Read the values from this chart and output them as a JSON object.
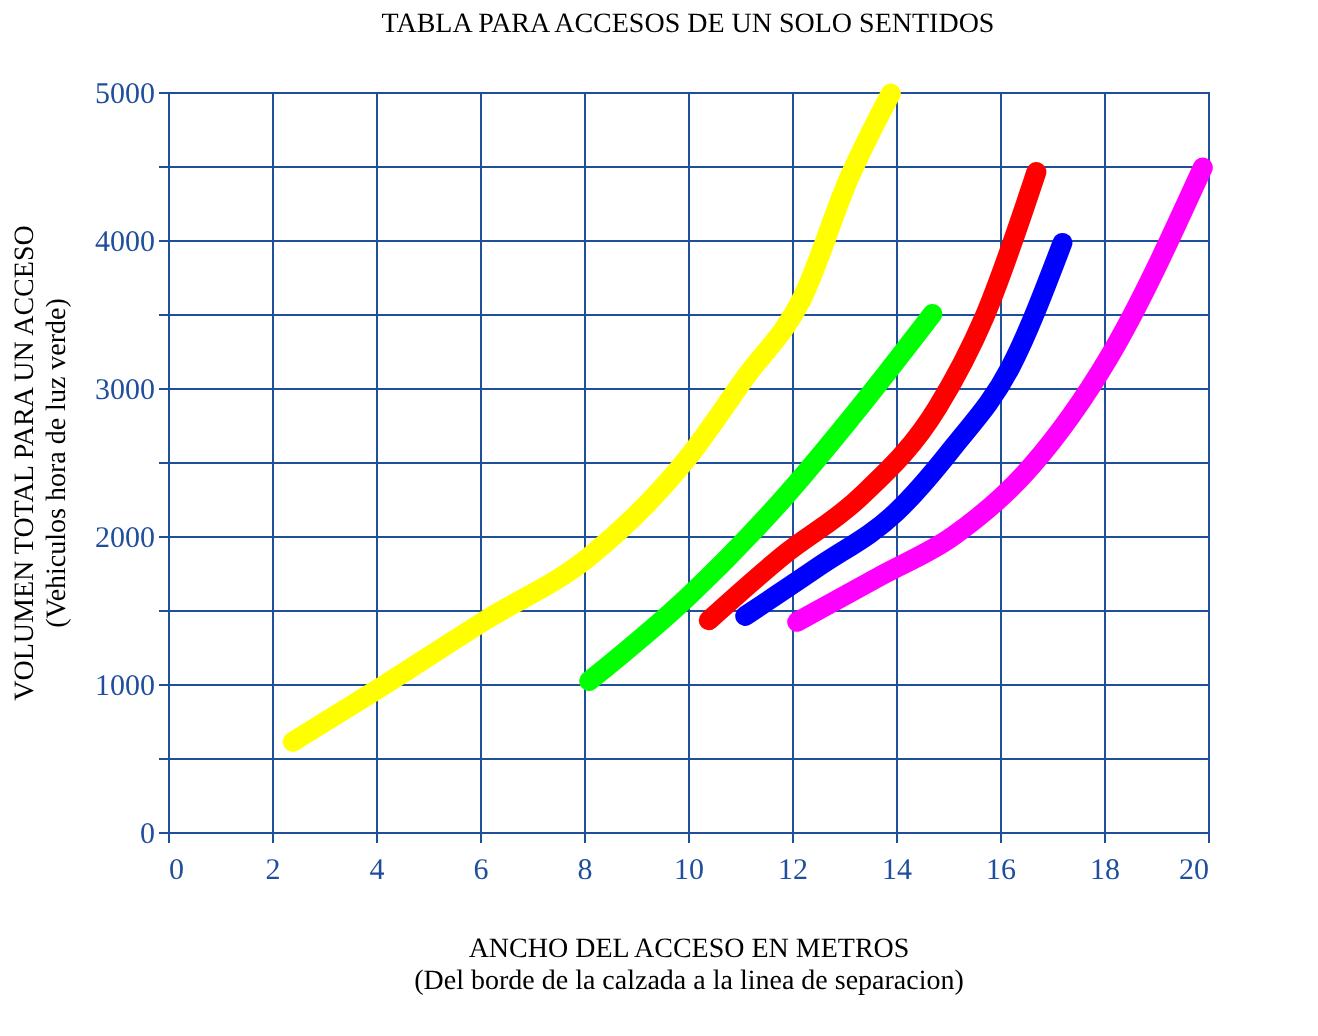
{
  "chart_data": {
    "type": "line",
    "title": "TABLA PARA ACCESOS DE UN SOLO SENTIDOS",
    "xlabel": "ANCHO DEL ACCESO EN METROS\n(Del borde de la calzada a la linea de separacion)",
    "ylabel": "VOLUMEN TOTAL  PARA UN ACCESO\n(Vehiculos hora de luz verde)",
    "xlim": [
      0,
      20
    ],
    "xticks": [
      0,
      2,
      4,
      6,
      8,
      10,
      12,
      14,
      16,
      18,
      20
    ],
    "ylim": [
      0,
      5000
    ],
    "yticks": [
      0,
      {
        "value": 500,
        "label": null
      },
      1000,
      {
        "value": 1500,
        "label": null
      },
      2000,
      {
        "value": 2500,
        "label": null
      },
      3000,
      {
        "value": 3500,
        "label": null
      },
      4000,
      {
        "value": 4500,
        "label": null
      },
      5000
    ],
    "grid": true,
    "legend": false,
    "marker": "none",
    "line_style": "solid",
    "series": [
      {
        "color": "#ffff00",
        "x": [
          2.4,
          4.1,
          6.1,
          8.1,
          10.0,
          11.1,
          12.2,
          13.1,
          13.9
        ],
        "values": [
          610,
          980,
          1430,
          1860,
          2530,
          3070,
          3610,
          4420,
          4990
        ]
      },
      {
        "color": "#00ff00",
        "x": [
          8.1,
          10.0,
          11.8,
          13.3,
          14.7
        ],
        "values": [
          1020,
          1590,
          2240,
          2870,
          3500
        ]
      },
      {
        "color": "#ff0000",
        "x": [
          10.4,
          11.8,
          13.3,
          14.8,
          15.7,
          16.7
        ],
        "values": [
          1430,
          1860,
          2260,
          2870,
          3480,
          4460
        ]
      },
      {
        "color": "#0000ff",
        "x": [
          11.1,
          12.5,
          14.0,
          15.1,
          16.2,
          17.2
        ],
        "values": [
          1460,
          1790,
          2160,
          2600,
          3140,
          3980
        ]
      },
      {
        "color": "#ff00ff",
        "x": [
          12.1,
          13.7,
          15.1,
          16.6,
          18.1,
          19.9
        ],
        "values": [
          1420,
          1730,
          2000,
          2470,
          3210,
          4490
        ]
      }
    ]
  }
}
